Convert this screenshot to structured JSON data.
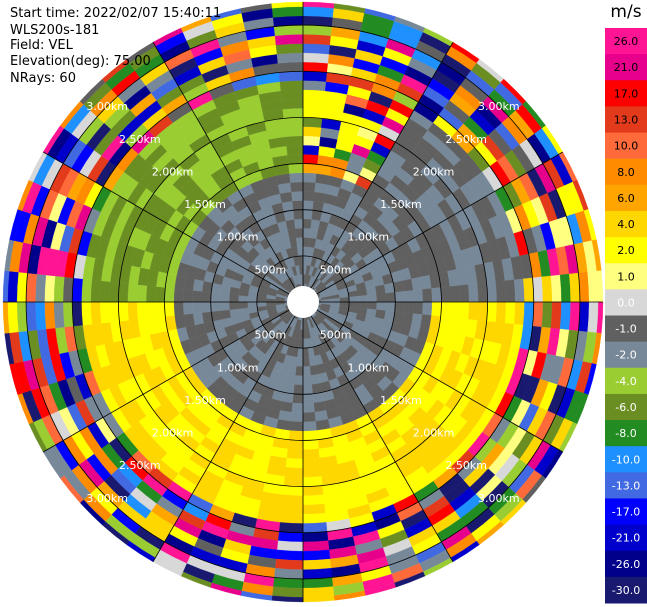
{
  "header": {
    "start_time": "Start time: 2022/02/07 15:40:11",
    "site": "WLS200s-181",
    "field": "Field: VEL",
    "elevation": "Elevation(deg): 75.00",
    "nrays": "NRays: 60"
  },
  "chart_data": {
    "type": "heatmap",
    "projection": "polar PPI",
    "title": "",
    "range_rings": [
      {
        "range_m": 500,
        "label": "500m"
      },
      {
        "range_m": 1000,
        "label": "1.00km"
      },
      {
        "range_m": 1500,
        "label": "1.50km"
      },
      {
        "range_m": 2000,
        "label": "2.00km"
      },
      {
        "range_m": 2500,
        "label": "2.50km"
      },
      {
        "range_m": 3000,
        "label": "3.00km"
      }
    ],
    "max_range_m": 3250,
    "nrays": 60,
    "colorbar": {
      "unit": "m/s",
      "tick_labels": [
        "26.0",
        "21.0",
        "17.0",
        "13.0",
        "10.0",
        "8.0",
        "6.0",
        "4.0",
        "2.0",
        "1.0",
        "0.0",
        "-1.0",
        "-2.0",
        "-4.0",
        "-6.0",
        "-8.0",
        "-10.0",
        "-13.0",
        "-17.0",
        "-21.0",
        "-26.0",
        "-30.0"
      ],
      "colors": [
        "#ff1493",
        "#e6008c",
        "#ff0000",
        "#e23a1a",
        "#ff6a3a",
        "#ff8c00",
        "#ffa500",
        "#ffd700",
        "#ffff00",
        "#ffff80",
        "#d8d8d8",
        "#606060",
        "#778899",
        "#9acd32",
        "#6b8e23",
        "#228b22",
        "#1e90ff",
        "#4169e1",
        "#0000ff",
        "#0000cd",
        "#00008b",
        "#191970"
      ]
    },
    "sectors": [
      {
        "az_from": 0,
        "az_to": 30,
        "near_class": "zero",
        "mid_class": "pos_noise",
        "far_class": "noise"
      },
      {
        "az_from": 30,
        "az_to": 90,
        "near_class": "zero",
        "mid_class": "zero",
        "far_class": "noise"
      },
      {
        "az_from": 90,
        "az_to": 270,
        "near_class": "zero",
        "mid_class": "positive",
        "far_class": "noise"
      },
      {
        "az_from": 270,
        "az_to": 360,
        "near_class": "zero",
        "mid_class": "negative",
        "far_class": "noise"
      }
    ]
  }
}
